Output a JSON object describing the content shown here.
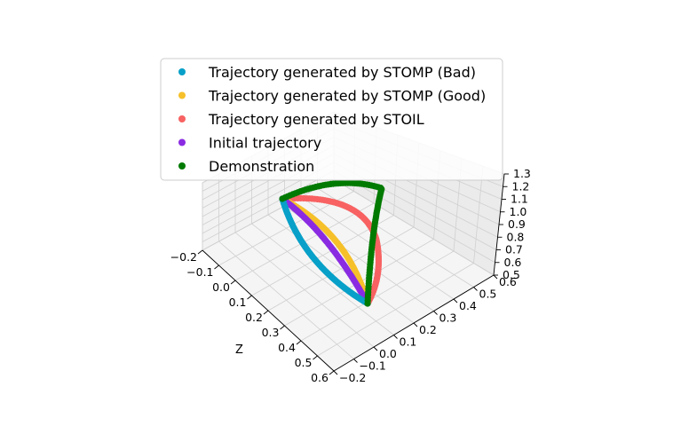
{
  "chart_data": {
    "type": "scatter",
    "projection": "3d",
    "title": "",
    "xlabel": "",
    "ylabel": "",
    "zlabel": "Z",
    "ticks": {
      "z_axis": [
        "−0.2",
        "−0.1",
        "0.0",
        "0.1",
        "0.2",
        "0.3",
        "0.4",
        "0.5",
        "0.6"
      ],
      "right_axis": [
        "−0.2",
        "−0.1",
        "0.0",
        "0.1",
        "0.2",
        "0.3",
        "0.4",
        "0.5",
        "0.6"
      ],
      "vertical_axis": [
        "0.5",
        "0.6",
        "0.7",
        "0.8",
        "0.9",
        "1.0",
        "1.1",
        "1.2",
        "1.3"
      ]
    },
    "grid": true,
    "legend_position": "top-left",
    "series": [
      {
        "name": "Trajectory generated by STOMP (Bad)",
        "color": "#08a0c8",
        "start": [
          0.0,
          0.0,
          1.2
        ],
        "end": [
          0.5,
          0.5,
          0.7
        ]
      },
      {
        "name": "Trajectory generated by STOMP (Good)",
        "color": "#f6c02a",
        "start": [
          0.0,
          0.0,
          1.2
        ],
        "end": [
          0.5,
          0.5,
          0.7
        ]
      },
      {
        "name": "Trajectory generated by STOIL",
        "color": "#f86262",
        "start": [
          0.0,
          0.0,
          1.2
        ],
        "end": [
          0.5,
          0.5,
          0.7
        ]
      },
      {
        "name": "Initial trajectory",
        "color": "#8a2be2",
        "start": [
          0.0,
          0.0,
          1.2
        ],
        "end": [
          0.5,
          0.5,
          0.7
        ]
      },
      {
        "name": "Demonstration",
        "color": "#007a00",
        "start": [
          0.0,
          0.0,
          1.2
        ],
        "end": [
          0.5,
          0.5,
          0.7
        ]
      }
    ]
  }
}
